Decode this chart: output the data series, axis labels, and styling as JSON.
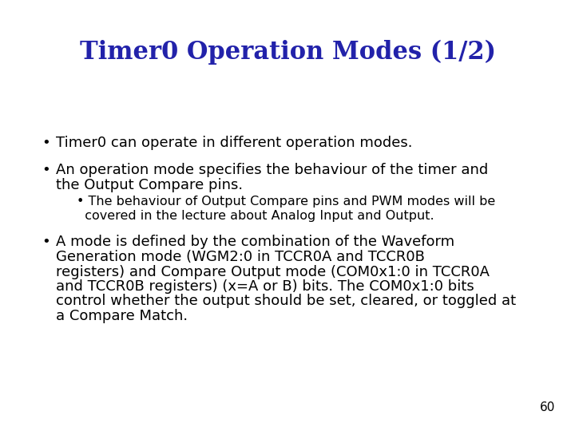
{
  "title": "Timer0 Operation Modes (1/2)",
  "title_color": "#2222aa",
  "title_fontsize": 22,
  "title_font": "serif",
  "bg_color": "#ffffff",
  "text_color": "#000000",
  "body_fontsize": 13.0,
  "body_font": "sans-serif",
  "sub_fontsize": 11.5,
  "page_number": "60",
  "bullet1": "Timer0 can operate in different operation modes.",
  "bullet2_line1": "An operation mode specifies the behaviour of the timer and",
  "bullet2_line2": "the Output Compare pins.",
  "subbullet_line1": "• The behaviour of Output Compare pins and PWM modes will be",
  "subbullet_line2": "  covered in the lecture about Analog Input and Output.",
  "bullet3_line1": "A mode is defined by the combination of the Waveform",
  "bullet3_line2": "Generation mode (WGM2:0 in TCCR0A and TCCR0B",
  "bullet3_line3": "registers) and Compare Output mode (COM0x1:0 in TCCR0A",
  "bullet3_line4": "and TCCR0B registers) (x=A or B) bits. The COM0x1:0 bits",
  "bullet3_line5": "control whether the output should be set, cleared, or toggled at",
  "bullet3_line6": "a Compare Match."
}
